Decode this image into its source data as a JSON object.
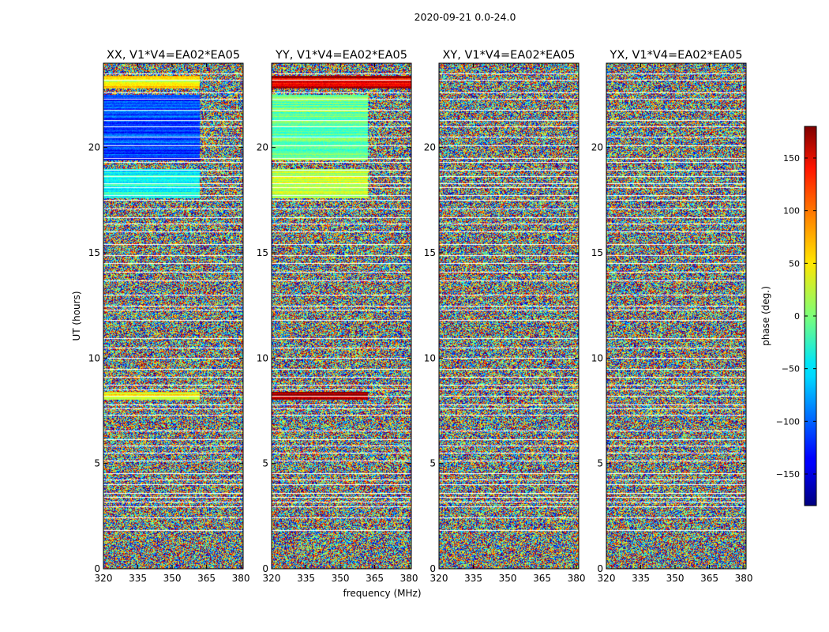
{
  "figure_title": "2020-09-21 0.0-24.0",
  "chart_data": {
    "type": "heatmap",
    "suptitle": "2020-09-21 0.0-24.0",
    "xlabel": "frequency (MHz)",
    "ylabel": "UT (hours)",
    "xlim": [
      320,
      381
    ],
    "ylim": [
      0,
      24
    ],
    "xticks": [
      320,
      335,
      350,
      365,
      380
    ],
    "yticks": [
      0,
      5,
      10,
      15,
      20
    ],
    "panels": [
      {
        "title": "XX, V1*V4=EA02*EA05",
        "pol": "XX"
      },
      {
        "title": "YY, V1*V4=EA02*EA05",
        "pol": "YY"
      },
      {
        "title": "XY, V1*V4=EA02*EA05",
        "pol": "XY"
      },
      {
        "title": "YX, V1*V4=EA02*EA05",
        "pol": "YX"
      }
    ],
    "colorbar": {
      "label": "phase (deg.)",
      "vmin": -180,
      "vmax": 180,
      "ticks": [
        -150,
        -100,
        -50,
        0,
        50,
        100,
        150
      ],
      "tick_labels": [
        "−150",
        "−100",
        "−50",
        "0",
        "50",
        "100",
        "150"
      ],
      "colormap": "jet"
    },
    "flagged_ut_hours": [
      1.85,
      2.45,
      2.95,
      3.2,
      3.42,
      3.6,
      4.0,
      4.25,
      4.55,
      5.15,
      5.5,
      5.85,
      6.15,
      6.55,
      7.3,
      7.6,
      7.8,
      8.2,
      8.5,
      8.75,
      9.1,
      9.5,
      10.0,
      10.5,
      10.95,
      11.8,
      12.3,
      12.5,
      13.0,
      13.7,
      14.1,
      14.5,
      14.9,
      15.4,
      16.0,
      16.4,
      16.7,
      17.1,
      17.5,
      17.75,
      18.1,
      18.3,
      18.65,
      18.95,
      19.3,
      19.5,
      20.1,
      20.5,
      21.0,
      21.3,
      21.8,
      22.3,
      22.6,
      23.2,
      23.5
    ],
    "coherent_segments": [
      {
        "panel": "XX",
        "ut_start": 19.4,
        "ut_end": 22.5,
        "phase_deg": -110,
        "freq_end_mhz": 362
      },
      {
        "panel": "XX",
        "ut_start": 22.8,
        "ut_end": 23.4,
        "phase_deg": 45,
        "freq_end_mhz": 362
      },
      {
        "panel": "XX",
        "ut_start": 17.6,
        "ut_end": 19.0,
        "phase_deg": -40,
        "freq_end_mhz": 362
      },
      {
        "panel": "XX",
        "ut_start": 8.05,
        "ut_end": 8.4,
        "phase_deg": 50,
        "freq_end_mhz": 362
      },
      {
        "panel": "YY",
        "ut_start": 19.4,
        "ut_end": 22.5,
        "phase_deg": -10,
        "freq_end_mhz": 362
      },
      {
        "panel": "YY",
        "ut_start": 22.8,
        "ut_end": 23.4,
        "phase_deg": 150,
        "freq_end_mhz": 381
      },
      {
        "panel": "YY",
        "ut_start": 17.6,
        "ut_end": 19.0,
        "phase_deg": 20,
        "freq_end_mhz": 362
      },
      {
        "panel": "YY",
        "ut_start": 8.05,
        "ut_end": 8.4,
        "phase_deg": 160,
        "freq_end_mhz": 362
      }
    ]
  }
}
